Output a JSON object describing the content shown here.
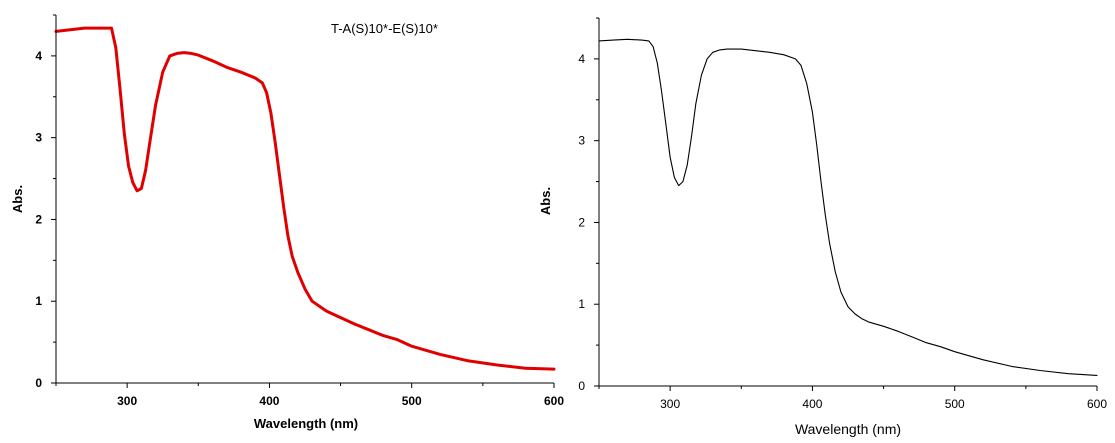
{
  "chart_data": [
    {
      "type": "line",
      "title": "",
      "annotation": "T-A(S)10*-E(S)10*",
      "xlabel": "Wavelength (nm)",
      "ylabel": "Abs.",
      "xlim": [
        250,
        600
      ],
      "ylim": [
        0,
        4.5
      ],
      "x_ticks": [
        300,
        400,
        500,
        600
      ],
      "y_ticks": [
        0,
        1,
        2,
        3,
        4
      ],
      "grid": false,
      "color": "#e00000",
      "series": [
        {
          "x": [
            250,
            260,
            270,
            280,
            289,
            292,
            295,
            298,
            301,
            304,
            307,
            310,
            313,
            316,
            320,
            325,
            330,
            335,
            340,
            345,
            350,
            360,
            370,
            380,
            390,
            395,
            398,
            401,
            404,
            407,
            410,
            413,
            416,
            420,
            425,
            430,
            440,
            450,
            460,
            470,
            480,
            490,
            500,
            520,
            540,
            560,
            580,
            600
          ],
          "y": [
            4.3,
            4.32,
            4.34,
            4.34,
            4.34,
            4.1,
            3.6,
            3.05,
            2.65,
            2.45,
            2.35,
            2.38,
            2.6,
            2.95,
            3.4,
            3.8,
            4.0,
            4.03,
            4.04,
            4.03,
            4.01,
            3.94,
            3.86,
            3.8,
            3.73,
            3.67,
            3.55,
            3.3,
            2.95,
            2.55,
            2.15,
            1.8,
            1.55,
            1.35,
            1.15,
            1.0,
            0.88,
            0.8,
            0.72,
            0.65,
            0.58,
            0.53,
            0.45,
            0.35,
            0.27,
            0.22,
            0.18,
            0.17
          ]
        }
      ]
    },
    {
      "type": "line",
      "title": "",
      "xlabel": "Wavelength (nm)",
      "ylabel": "Abs.",
      "xlim": [
        250,
        600
      ],
      "ylim": [
        0,
        4.5
      ],
      "x_ticks": [
        300,
        400,
        500,
        600
      ],
      "y_ticks": [
        0,
        1,
        2,
        3,
        4
      ],
      "grid": false,
      "color": "#000000",
      "series": [
        {
          "x": [
            250,
            260,
            270,
            280,
            285,
            288,
            291,
            294,
            297,
            300,
            303,
            306,
            309,
            312,
            315,
            318,
            322,
            326,
            330,
            335,
            340,
            350,
            360,
            370,
            380,
            388,
            392,
            396,
            400,
            403,
            406,
            409,
            412,
            416,
            420,
            425,
            430,
            435,
            440,
            450,
            460,
            470,
            480,
            490,
            500,
            520,
            540,
            560,
            580,
            600
          ],
          "y": [
            4.22,
            4.23,
            4.24,
            4.23,
            4.22,
            4.15,
            3.95,
            3.6,
            3.2,
            2.8,
            2.55,
            2.45,
            2.5,
            2.7,
            3.05,
            3.45,
            3.8,
            4.0,
            4.08,
            4.11,
            4.12,
            4.12,
            4.1,
            4.08,
            4.05,
            4.0,
            3.92,
            3.7,
            3.35,
            2.95,
            2.5,
            2.1,
            1.75,
            1.4,
            1.15,
            0.97,
            0.88,
            0.82,
            0.78,
            0.73,
            0.67,
            0.6,
            0.53,
            0.48,
            0.42,
            0.32,
            0.24,
            0.19,
            0.15,
            0.13
          ]
        }
      ]
    }
  ]
}
